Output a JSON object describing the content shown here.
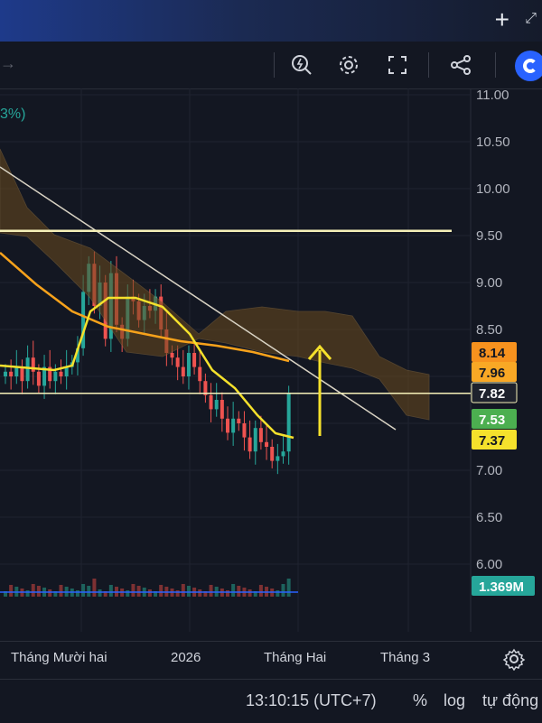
{
  "toolbar": {
    "icons": [
      "replay-icon",
      "settings-icon",
      "fullscreen-icon",
      "share-icon",
      "logo-icon"
    ]
  },
  "header": {
    "percent_fragment": "3%)"
  },
  "colors": {
    "background": "#131722",
    "up": "#26a69a",
    "down": "#ef5350",
    "ma_orange": "#f7a21b",
    "ma_yellow": "#f5e12c",
    "trendline": "#d9d3c4",
    "hline": "#f5f0b8"
  },
  "chart_data": {
    "type": "candlestick",
    "y_axis": {
      "ticks": [
        "11.00",
        "10.50",
        "10.00",
        "9.50",
        "9.00",
        "8.50",
        "8.00",
        "7.50",
        "7.00",
        "6.50",
        "6.00"
      ],
      "ylim": [
        5.85,
        11.05
      ]
    },
    "x_axis": {
      "ticks": [
        "Tháng Mười hai",
        "2026",
        "Tháng Hai",
        "Tháng 3"
      ]
    },
    "price_labels": [
      {
        "value": "8.14",
        "bg": "#f7921e",
        "fg": "#131722"
      },
      {
        "value": "7.96",
        "bg": "#f9a825",
        "fg": "#131722"
      },
      {
        "value": "7.82",
        "bg": "#1e222d",
        "fg": "#ffffff"
      },
      {
        "value": "7.53",
        "bg": "#4caf50",
        "fg": "#ffffff"
      },
      {
        "value": "7.37",
        "bg": "#f5e12c",
        "fg": "#131722"
      }
    ],
    "volume_label": "1.369M",
    "horizontal_lines": [
      9.55,
      7.82
    ],
    "closes": [
      8.05,
      8.0,
      8.1,
      7.95,
      8.2,
      8.05,
      7.9,
      8.1,
      7.95,
      8.05,
      8.0,
      8.1,
      8.15,
      8.3,
      8.9,
      9.2,
      8.75,
      9.0,
      8.4,
      9.1,
      8.55,
      8.4,
      8.85,
      8.8,
      8.6,
      8.75,
      8.7,
      8.85,
      8.5,
      8.25,
      8.2,
      8.1,
      8.0,
      8.25,
      8.1,
      7.95,
      7.8,
      7.65,
      7.75,
      7.55,
      7.4,
      7.55,
      7.5,
      7.35,
      7.2,
      7.45,
      7.3,
      7.25,
      7.1,
      7.15,
      7.2,
      7.82
    ]
  },
  "time": {
    "clock": "13:10:15 (UTC+7)",
    "percent": "%",
    "log": "log",
    "auto": "tự động"
  }
}
